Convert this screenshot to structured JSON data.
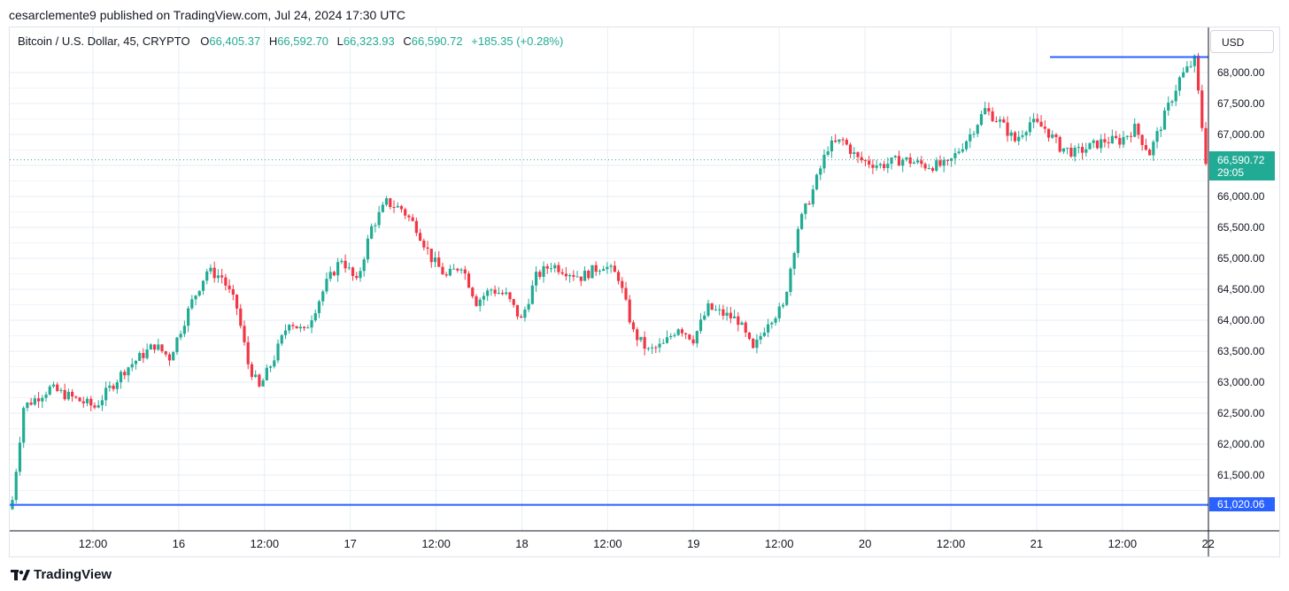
{
  "header": {
    "published_text": "cesarclemente9 published on TradingView.com, Jul 24, 2024 17:30 UTC"
  },
  "legend": {
    "symbol": "Bitcoin / U.S. Dollar, 45, CRYPTO",
    "open_label": "O",
    "open_value": "66,405.37",
    "high_label": "H",
    "high_value": "66,592.70",
    "low_label": "L",
    "low_value": "66,323.93",
    "close_label": "C",
    "close_value": "66,590.72",
    "change": "+185.35 (+0.28%)"
  },
  "currency_button": "USD",
  "last_price": {
    "price": "66,590.72",
    "countdown": "29:05"
  },
  "support_level": {
    "label": "61,020.06",
    "value": 61020.06
  },
  "resistance_level": {
    "value": 68250
  },
  "brand": "TradingView",
  "colors": {
    "up": "#22ab94",
    "down": "#f23645",
    "level": "#2962ff",
    "grid": "#e6eef5"
  },
  "chart_data": {
    "type": "candlestick",
    "y_ticks": [
      "68,000.00",
      "67,500.00",
      "67,000.00",
      "66,500.00",
      "66,000.00",
      "65,500.00",
      "65,000.00",
      "64,500.00",
      "64,000.00",
      "63,500.00",
      "63,000.00",
      "62,500.00",
      "62,000.00",
      "61,500.00"
    ],
    "y_tick_values": [
      68000,
      67500,
      67000,
      66500,
      66000,
      65500,
      65000,
      64500,
      64000,
      63500,
      63000,
      62500,
      62000,
      61500
    ],
    "x_ticks": [
      "12:00",
      "16",
      "12:00",
      "17",
      "12:00",
      "18",
      "12:00",
      "19",
      "12:00",
      "20",
      "12:00",
      "21",
      "12:00",
      "22"
    ],
    "ylim": [
      60700,
      68700
    ],
    "candle_count": 320,
    "closes_keypoints": [
      [
        0,
        61100
      ],
      [
        3,
        62600
      ],
      [
        10,
        62900
      ],
      [
        18,
        62700
      ],
      [
        22,
        62600
      ],
      [
        30,
        63200
      ],
      [
        38,
        63600
      ],
      [
        42,
        63400
      ],
      [
        48,
        64300
      ],
      [
        52,
        64800
      ],
      [
        56,
        64700
      ],
      [
        60,
        64200
      ],
      [
        63,
        63300
      ],
      [
        66,
        62900
      ],
      [
        70,
        63400
      ],
      [
        74,
        64000
      ],
      [
        78,
        63800
      ],
      [
        84,
        64600
      ],
      [
        88,
        65000
      ],
      [
        92,
        64600
      ],
      [
        96,
        65500
      ],
      [
        100,
        65900
      ],
      [
        104,
        65800
      ],
      [
        108,
        65500
      ],
      [
        112,
        65000
      ],
      [
        116,
        64700
      ],
      [
        120,
        64900
      ],
      [
        124,
        64300
      ],
      [
        128,
        64500
      ],
      [
        132,
        64400
      ],
      [
        136,
        64000
      ],
      [
        140,
        64700
      ],
      [
        144,
        64900
      ],
      [
        148,
        64800
      ],
      [
        152,
        64700
      ],
      [
        158,
        64900
      ],
      [
        162,
        64700
      ],
      [
        166,
        63800
      ],
      [
        170,
        63500
      ],
      [
        174,
        63600
      ],
      [
        178,
        63900
      ],
      [
        182,
        63700
      ],
      [
        186,
        64200
      ],
      [
        190,
        64100
      ],
      [
        194,
        64000
      ],
      [
        198,
        63500
      ],
      [
        202,
        64000
      ],
      [
        206,
        64200
      ],
      [
        210,
        65500
      ],
      [
        214,
        66100
      ],
      [
        218,
        66800
      ],
      [
        222,
        66900
      ],
      [
        226,
        66600
      ],
      [
        232,
        66500
      ],
      [
        238,
        66600
      ],
      [
        244,
        66500
      ],
      [
        250,
        66500
      ],
      [
        256,
        67000
      ],
      [
        260,
        67400
      ],
      [
        264,
        67200
      ],
      [
        268,
        66900
      ],
      [
        272,
        67200
      ],
      [
        276,
        67100
      ],
      [
        280,
        66800
      ],
      [
        284,
        66700
      ],
      [
        288,
        66800
      ],
      [
        292,
        66900
      ],
      [
        296,
        66900
      ],
      [
        300,
        67100
      ],
      [
        304,
        66700
      ],
      [
        308,
        67300
      ],
      [
        312,
        67900
      ],
      [
        316,
        68200
      ],
      [
        319,
        66590.72
      ]
    ]
  }
}
